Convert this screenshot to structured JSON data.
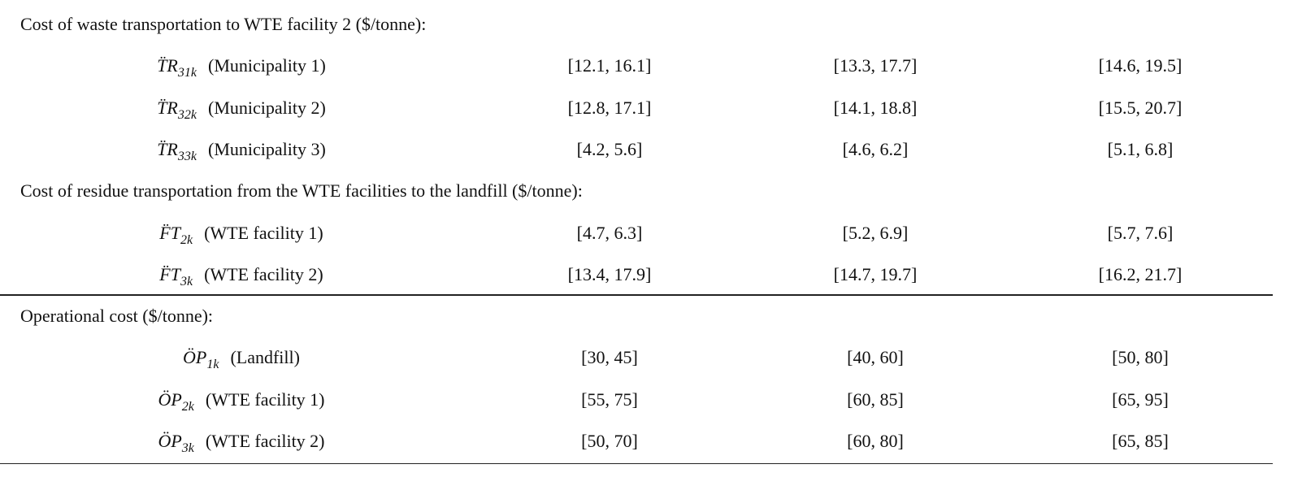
{
  "sections": [
    {
      "heading": "Cost of waste transportation to WTE facility 2 ($/tonne):",
      "rows": [
        {
          "symbol": "T̈R",
          "subscript": "31k",
          "label": "(Municipality 1)",
          "values": [
            "[12.1, 16.1]",
            "[13.3, 17.7]",
            "[14.6, 19.5]"
          ]
        },
        {
          "symbol": "T̈R",
          "subscript": "32k",
          "label": "(Municipality 2)",
          "values": [
            "[12.8, 17.1]",
            "[14.1, 18.8]",
            "[15.5, 20.7]"
          ]
        },
        {
          "symbol": "T̈R",
          "subscript": "33k",
          "label": "(Municipality 3)",
          "values": [
            "[4.2, 5.6]",
            "[4.6, 6.2]",
            "[5.1, 6.8]"
          ]
        }
      ]
    },
    {
      "heading": "Cost of residue transportation from the WTE facilities to the landfill ($/tonne):",
      "rows": [
        {
          "symbol": "F̈T",
          "subscript": "2k",
          "label": "(WTE facility 1)",
          "values": [
            "[4.7, 6.3]",
            "[5.2, 6.9]",
            "[5.7, 7.6]"
          ]
        },
        {
          "symbol": "F̈T",
          "subscript": "3k",
          "label": "(WTE facility 2)",
          "values": [
            "[13.4, 17.9]",
            "[14.7, 19.7]",
            "[16.2, 21.7]"
          ]
        }
      ]
    },
    {
      "heading": "Operational cost ($/tonne):",
      "rows": [
        {
          "symbol": "ÖP",
          "subscript": "1k",
          "label": "(Landfill)",
          "values": [
            "[30, 45]",
            "[40, 60]",
            "[50, 80]"
          ]
        },
        {
          "symbol": "ÖP",
          "subscript": "2k",
          "label": "(WTE facility 1)",
          "values": [
            "[55, 75]",
            "[60, 85]",
            "[65, 95]"
          ]
        },
        {
          "symbol": "ÖP",
          "subscript": "3k",
          "label": "(WTE facility 2)",
          "values": [
            "[50, 70]",
            "[60, 80]",
            "[65, 85]"
          ]
        }
      ]
    }
  ]
}
